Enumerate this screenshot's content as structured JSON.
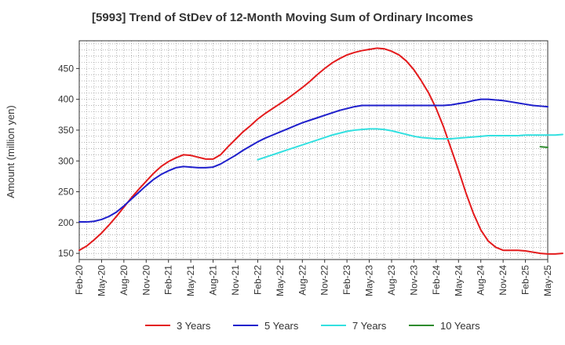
{
  "chart_data": {
    "type": "line",
    "title": "[5993]  Trend of StDev of 12-Month Moving Sum of Ordinary Incomes",
    "xlabel": "",
    "ylabel": "Amount (million yen)",
    "ylim": [
      140,
      495
    ],
    "yticks": [
      150,
      200,
      250,
      300,
      350,
      400,
      450
    ],
    "grid": true,
    "legend_position": "bottom",
    "x_tick_labels": [
      "Feb-20",
      "May-20",
      "Aug-20",
      "Nov-20",
      "Feb-21",
      "May-21",
      "Aug-21",
      "Nov-21",
      "Feb-22",
      "May-22",
      "Aug-22",
      "Nov-22",
      "Feb-23",
      "May-23",
      "Aug-23",
      "Nov-23",
      "Feb-24",
      "May-24",
      "Aug-24",
      "Nov-24",
      "Feb-25",
      "May-25"
    ],
    "x_start": "Feb-20",
    "x_end": "May-25",
    "series": [
      {
        "name": "3 Years",
        "color": "#e31a1c",
        "start_month_index": 0,
        "values": [
          155,
          162,
          172,
          183,
          196,
          210,
          225,
          240,
          254,
          267,
          280,
          291,
          299,
          305,
          310,
          309,
          306,
          303,
          303,
          310,
          323,
          335,
          347,
          357,
          368,
          377,
          385,
          393,
          401,
          410,
          419,
          429,
          440,
          450,
          459,
          466,
          472,
          476,
          479,
          481,
          483,
          482,
          478,
          472,
          462,
          448,
          430,
          410,
          385,
          355,
          320,
          285,
          248,
          215,
          188,
          170,
          160,
          155,
          155,
          155,
          154,
          152,
          150,
          149,
          149,
          150
        ]
      },
      {
        "name": "5 Years",
        "color": "#1f1fcc",
        "start_month_index": 0,
        "values": [
          201,
          201,
          202,
          205,
          210,
          217,
          227,
          238,
          249,
          260,
          270,
          278,
          284,
          289,
          291,
          290,
          289,
          289,
          290,
          295,
          302,
          309,
          317,
          324,
          331,
          337,
          342,
          347,
          352,
          357,
          362,
          366,
          370,
          374,
          378,
          382,
          385,
          388,
          390,
          390,
          390,
          390,
          390,
          390,
          390,
          390,
          390,
          390,
          390,
          390,
          391,
          393,
          395,
          398,
          400,
          400,
          399,
          398,
          396,
          394,
          392,
          390,
          389,
          388
        ]
      },
      {
        "name": "7 Years",
        "color": "#33e0e0",
        "start_month_index": 24,
        "values": [
          302,
          306,
          310,
          314,
          318,
          322,
          326,
          330,
          334,
          338,
          342,
          345,
          348,
          350,
          351,
          352,
          352,
          351,
          349,
          346,
          343,
          340,
          338,
          337,
          336,
          336,
          336,
          337,
          338,
          339,
          340,
          341,
          341,
          341,
          341,
          341,
          342,
          342,
          342,
          342,
          342,
          343
        ]
      },
      {
        "name": "10 Years",
        "color": "#2e8b2e",
        "start_month_index": 62,
        "values": [
          323,
          322
        ]
      }
    ]
  }
}
